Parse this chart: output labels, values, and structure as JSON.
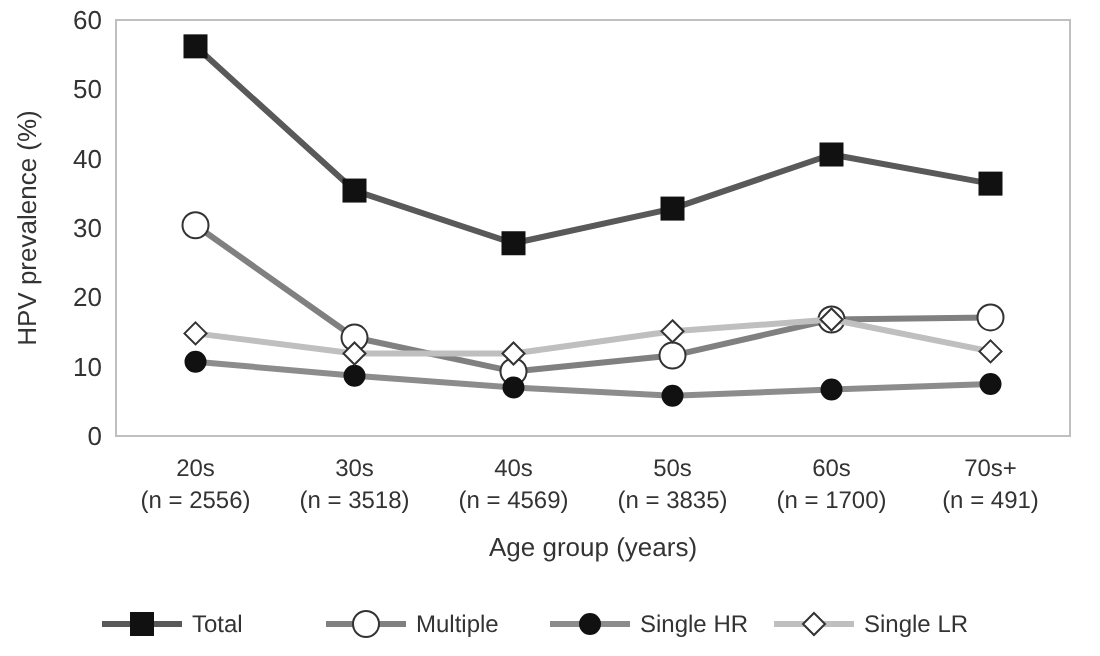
{
  "chart_data": {
    "type": "line",
    "xlabel": "Age group (years)",
    "ylabel": "HPV prevalence (%)",
    "categories": [
      "20s\n(n = 2556)",
      "30s\n(n = 3518)",
      "40s\n(n = 4569)",
      "50s\n(n = 3835)",
      "60s\n(n = 1700)",
      "70s+\n(n = 491)"
    ],
    "ylim": [
      0,
      60
    ],
    "yticks": [
      0,
      10,
      20,
      30,
      40,
      50,
      60
    ],
    "grid": false,
    "legend": "bottom",
    "series": [
      {
        "name": "Total",
        "color": "#595959",
        "marker": "square",
        "values": [
          56.2,
          35.4,
          27.8,
          32.8,
          40.6,
          36.4
        ]
      },
      {
        "name": "Multiple",
        "color": "#808080",
        "marker": "circle",
        "values": [
          30.4,
          14.2,
          9.3,
          11.6,
          16.8,
          17.1
        ]
      },
      {
        "name": "Single HR",
        "color": "#8c8c8c",
        "marker": "circle",
        "values": [
          10.7,
          8.7,
          7.0,
          5.8,
          6.7,
          7.5
        ]
      },
      {
        "name": "Single LR",
        "color": "#bfbfbf",
        "marker": "diamond",
        "values": [
          14.8,
          11.9,
          11.9,
          15.1,
          16.8,
          12.2
        ]
      }
    ]
  }
}
